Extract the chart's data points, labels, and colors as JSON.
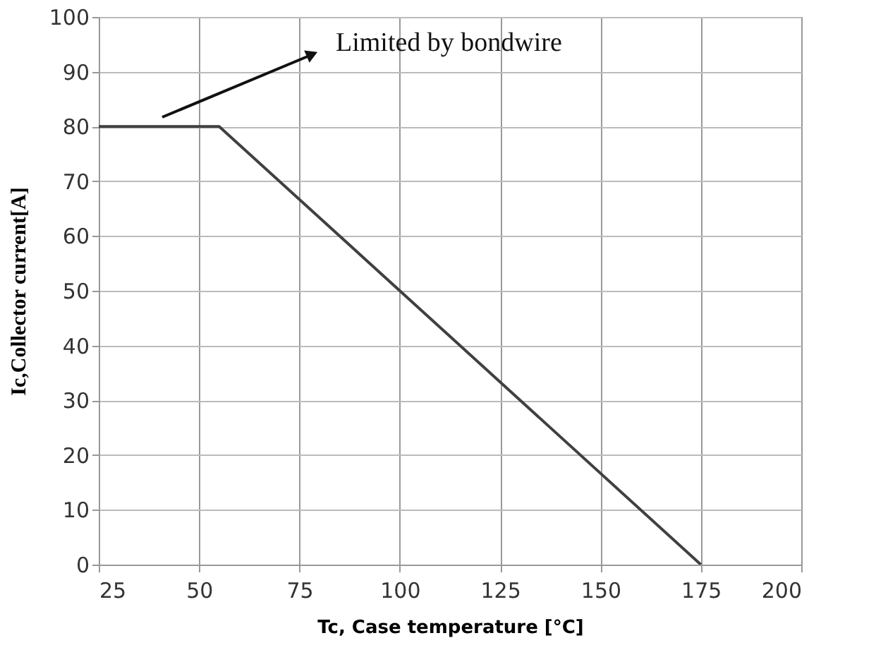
{
  "chart_data": {
    "type": "line",
    "xlabel": "Tc, Case temperature [°C]",
    "ylabel": "Ic,Collector current[A]",
    "x": [
      25,
      55,
      175
    ],
    "series": [
      {
        "color": "#404040",
        "values": [
          80,
          80,
          0
        ]
      }
    ],
    "xlim": [
      25,
      200
    ],
    "xticks": [
      25,
      50,
      75,
      100,
      125,
      150,
      175,
      200
    ],
    "ylim": [
      0,
      100
    ],
    "yticks": [
      0,
      10,
      20,
      30,
      40,
      50,
      60,
      70,
      80,
      90,
      100
    ],
    "grid": true,
    "marker": "none",
    "line_style": "solid",
    "annotations": [
      "Limited by bondwire"
    ]
  }
}
